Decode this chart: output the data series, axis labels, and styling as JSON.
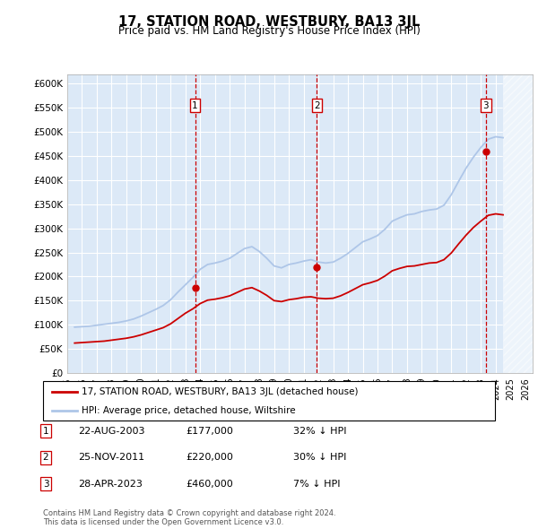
{
  "title": "17, STATION ROAD, WESTBURY, BA13 3JL",
  "subtitle": "Price paid vs. HM Land Registry's House Price Index (HPI)",
  "ylim": [
    0,
    620000
  ],
  "yticks": [
    0,
    50000,
    100000,
    150000,
    200000,
    250000,
    300000,
    350000,
    400000,
    450000,
    500000,
    550000,
    600000
  ],
  "ytick_labels": [
    "£0",
    "£50K",
    "£100K",
    "£150K",
    "£200K",
    "£250K",
    "£300K",
    "£350K",
    "£400K",
    "£450K",
    "£500K",
    "£550K",
    "£600K"
  ],
  "hpi_color": "#aec6e8",
  "price_color": "#cc0000",
  "sale_marker_color": "#cc0000",
  "sale_dates": [
    2003.65,
    2011.9,
    2023.32
  ],
  "sale_prices": [
    177000,
    220000,
    460000
  ],
  "sale_labels": [
    "1",
    "2",
    "3"
  ],
  "dashed_line_color": "#cc0000",
  "legend_label_red": "17, STATION ROAD, WESTBURY, BA13 3JL (detached house)",
  "legend_label_blue": "HPI: Average price, detached house, Wiltshire",
  "table_rows": [
    {
      "num": "1",
      "date": "22-AUG-2003",
      "price": "£177,000",
      "hpi": "32% ↓ HPI"
    },
    {
      "num": "2",
      "date": "25-NOV-2011",
      "price": "£220,000",
      "hpi": "30% ↓ HPI"
    },
    {
      "num": "3",
      "date": "28-APR-2023",
      "price": "£460,000",
      "hpi": "7% ↓ HPI"
    }
  ],
  "footer": "Contains HM Land Registry data © Crown copyright and database right 2024.\nThis data is licensed under the Open Government Licence v3.0.",
  "chart_bg_color": "#dce9f7",
  "hpi_data_x": [
    1995.5,
    1996.0,
    1996.5,
    1997.0,
    1997.5,
    1998.0,
    1998.5,
    1999.0,
    1999.5,
    2000.0,
    2000.5,
    2001.0,
    2001.5,
    2002.0,
    2002.5,
    2003.0,
    2003.5,
    2004.0,
    2004.5,
    2005.0,
    2005.5,
    2006.0,
    2006.5,
    2007.0,
    2007.5,
    2008.0,
    2008.5,
    2009.0,
    2009.5,
    2010.0,
    2010.5,
    2011.0,
    2011.5,
    2012.0,
    2012.5,
    2013.0,
    2013.5,
    2014.0,
    2014.5,
    2015.0,
    2015.5,
    2016.0,
    2016.5,
    2017.0,
    2017.5,
    2018.0,
    2018.5,
    2019.0,
    2019.5,
    2020.0,
    2020.5,
    2021.0,
    2021.5,
    2022.0,
    2022.5,
    2023.0,
    2023.5,
    2024.0,
    2024.5
  ],
  "hpi_data_y": [
    95000,
    96000,
    97000,
    99000,
    101000,
    103000,
    105000,
    108000,
    112000,
    118000,
    125000,
    132000,
    140000,
    152000,
    168000,
    183000,
    198000,
    215000,
    225000,
    228000,
    232000,
    238000,
    248000,
    258000,
    262000,
    252000,
    238000,
    222000,
    218000,
    225000,
    228000,
    232000,
    235000,
    230000,
    228000,
    230000,
    238000,
    248000,
    260000,
    272000,
    278000,
    285000,
    298000,
    315000,
    322000,
    328000,
    330000,
    335000,
    338000,
    340000,
    348000,
    370000,
    398000,
    425000,
    448000,
    468000,
    485000,
    490000,
    488000
  ],
  "price_data_x": [
    1995.5,
    1996.0,
    1996.5,
    1997.0,
    1997.5,
    1998.0,
    1998.5,
    1999.0,
    1999.5,
    2000.0,
    2000.5,
    2001.0,
    2001.5,
    2002.0,
    2002.5,
    2003.0,
    2003.5,
    2004.0,
    2004.5,
    2005.0,
    2005.5,
    2006.0,
    2006.5,
    2007.0,
    2007.5,
    2008.0,
    2008.5,
    2009.0,
    2009.5,
    2010.0,
    2010.5,
    2011.0,
    2011.5,
    2012.0,
    2012.5,
    2013.0,
    2013.5,
    2014.0,
    2014.5,
    2015.0,
    2015.5,
    2016.0,
    2016.5,
    2017.0,
    2017.5,
    2018.0,
    2018.5,
    2019.0,
    2019.5,
    2020.0,
    2020.5,
    2021.0,
    2021.5,
    2022.0,
    2022.5,
    2023.0,
    2023.5,
    2024.0,
    2024.5
  ],
  "price_data_y": [
    62000,
    63000,
    64000,
    65000,
    66000,
    68000,
    70000,
    72000,
    75000,
    79000,
    84000,
    89000,
    94000,
    102000,
    113000,
    124000,
    133000,
    144000,
    151000,
    153000,
    156000,
    160000,
    167000,
    174000,
    177000,
    170000,
    161000,
    150000,
    148000,
    152000,
    154000,
    157000,
    158000,
    155000,
    154000,
    155000,
    160000,
    167000,
    175000,
    183000,
    187000,
    192000,
    201000,
    212000,
    217000,
    221000,
    222000,
    225000,
    228000,
    229000,
    235000,
    249000,
    268000,
    286000,
    302000,
    315000,
    327000,
    330000,
    328000
  ],
  "xmin": 1995.0,
  "xmax": 2026.5,
  "future_start": 2024.5
}
